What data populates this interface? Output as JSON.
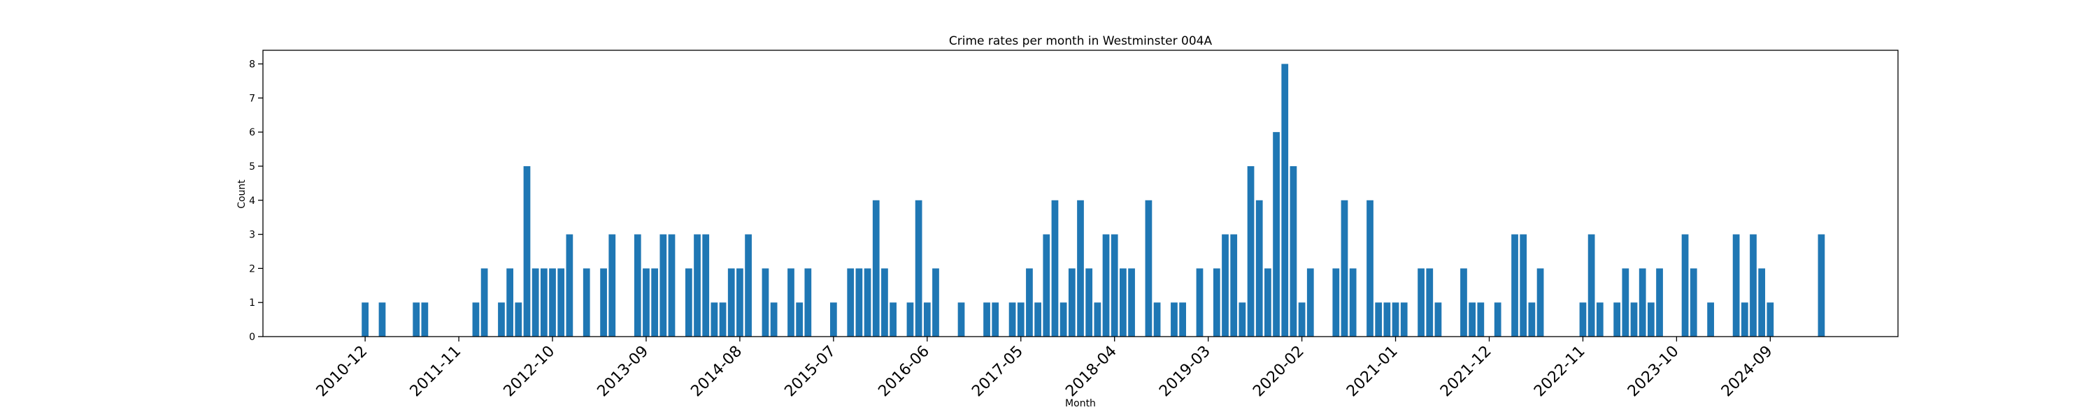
{
  "chart_data": {
    "type": "bar",
    "title": "Crime rates per month in Westminster 004A",
    "xlabel": "Month",
    "ylabel": "Count",
    "ylim": [
      0,
      8.4
    ],
    "yticks": [
      0,
      1,
      2,
      3,
      4,
      5,
      6,
      7,
      8
    ],
    "xlim": [
      "2009-12",
      "2025-12"
    ],
    "xticks": [
      "2010-12",
      "2011-11",
      "2012-10",
      "2013-09",
      "2014-08",
      "2015-07",
      "2016-06",
      "2017-05",
      "2018-04",
      "2019-03",
      "2020-02",
      "2021-01",
      "2021-12",
      "2022-11",
      "2023-10",
      "2024-09"
    ],
    "grid": false,
    "bar_color": "#1f77b4",
    "points": [
      [
        "2010-12",
        1
      ],
      [
        "2011-02",
        1
      ],
      [
        "2011-06",
        1
      ],
      [
        "2011-07",
        1
      ],
      [
        "2012-01",
        1
      ],
      [
        "2012-02",
        2
      ],
      [
        "2012-04",
        1
      ],
      [
        "2012-05",
        2
      ],
      [
        "2012-06",
        1
      ],
      [
        "2012-07",
        5
      ],
      [
        "2012-08",
        2
      ],
      [
        "2012-09",
        2
      ],
      [
        "2012-10",
        2
      ],
      [
        "2012-11",
        2
      ],
      [
        "2012-12",
        3
      ],
      [
        "2013-02",
        2
      ],
      [
        "2013-04",
        2
      ],
      [
        "2013-05",
        3
      ],
      [
        "2013-08",
        3
      ],
      [
        "2013-09",
        2
      ],
      [
        "2013-10",
        2
      ],
      [
        "2013-11",
        3
      ],
      [
        "2013-12",
        3
      ],
      [
        "2014-02",
        2
      ],
      [
        "2014-03",
        3
      ],
      [
        "2014-04",
        3
      ],
      [
        "2014-05",
        1
      ],
      [
        "2014-06",
        1
      ],
      [
        "2014-07",
        2
      ],
      [
        "2014-08",
        2
      ],
      [
        "2014-09",
        3
      ],
      [
        "2014-11",
        2
      ],
      [
        "2014-12",
        1
      ],
      [
        "2015-02",
        2
      ],
      [
        "2015-03",
        1
      ],
      [
        "2015-04",
        2
      ],
      [
        "2015-07",
        1
      ],
      [
        "2015-09",
        2
      ],
      [
        "2015-10",
        2
      ],
      [
        "2015-11",
        2
      ],
      [
        "2015-12",
        4
      ],
      [
        "2016-01",
        2
      ],
      [
        "2016-02",
        1
      ],
      [
        "2016-04",
        1
      ],
      [
        "2016-05",
        4
      ],
      [
        "2016-06",
        1
      ],
      [
        "2016-07",
        2
      ],
      [
        "2016-10",
        1
      ],
      [
        "2017-01",
        1
      ],
      [
        "2017-02",
        1
      ],
      [
        "2017-04",
        1
      ],
      [
        "2017-05",
        1
      ],
      [
        "2017-06",
        2
      ],
      [
        "2017-07",
        1
      ],
      [
        "2017-08",
        3
      ],
      [
        "2017-09",
        4
      ],
      [
        "2017-10",
        1
      ],
      [
        "2017-11",
        2
      ],
      [
        "2017-12",
        4
      ],
      [
        "2018-01",
        2
      ],
      [
        "2018-02",
        1
      ],
      [
        "2018-03",
        3
      ],
      [
        "2018-04",
        3
      ],
      [
        "2018-05",
        2
      ],
      [
        "2018-06",
        2
      ],
      [
        "2018-08",
        4
      ],
      [
        "2018-09",
        1
      ],
      [
        "2018-11",
        1
      ],
      [
        "2018-12",
        1
      ],
      [
        "2019-02",
        2
      ],
      [
        "2019-04",
        2
      ],
      [
        "2019-05",
        3
      ],
      [
        "2019-06",
        3
      ],
      [
        "2019-07",
        1
      ],
      [
        "2019-08",
        5
      ],
      [
        "2019-09",
        4
      ],
      [
        "2019-10",
        2
      ],
      [
        "2019-11",
        6
      ],
      [
        "2019-12",
        8
      ],
      [
        "2020-01",
        5
      ],
      [
        "2020-02",
        1
      ],
      [
        "2020-03",
        2
      ],
      [
        "2020-06",
        2
      ],
      [
        "2020-07",
        4
      ],
      [
        "2020-08",
        2
      ],
      [
        "2020-10",
        4
      ],
      [
        "2020-11",
        1
      ],
      [
        "2020-12",
        1
      ],
      [
        "2021-01",
        1
      ],
      [
        "2021-02",
        1
      ],
      [
        "2021-04",
        2
      ],
      [
        "2021-05",
        2
      ],
      [
        "2021-06",
        1
      ],
      [
        "2021-09",
        2
      ],
      [
        "2021-10",
        1
      ],
      [
        "2021-11",
        1
      ],
      [
        "2022-01",
        1
      ],
      [
        "2022-03",
        3
      ],
      [
        "2022-04",
        3
      ],
      [
        "2022-05",
        1
      ],
      [
        "2022-06",
        2
      ],
      [
        "2022-11",
        1
      ],
      [
        "2022-12",
        3
      ],
      [
        "2023-01",
        1
      ],
      [
        "2023-03",
        1
      ],
      [
        "2023-04",
        2
      ],
      [
        "2023-05",
        1
      ],
      [
        "2023-06",
        2
      ],
      [
        "2023-07",
        1
      ],
      [
        "2023-08",
        2
      ],
      [
        "2023-11",
        3
      ],
      [
        "2023-12",
        2
      ],
      [
        "2024-02",
        1
      ],
      [
        "2024-05",
        3
      ],
      [
        "2024-06",
        1
      ],
      [
        "2024-07",
        3
      ],
      [
        "2024-08",
        2
      ],
      [
        "2024-09",
        1
      ],
      [
        "2025-03",
        3
      ]
    ]
  }
}
